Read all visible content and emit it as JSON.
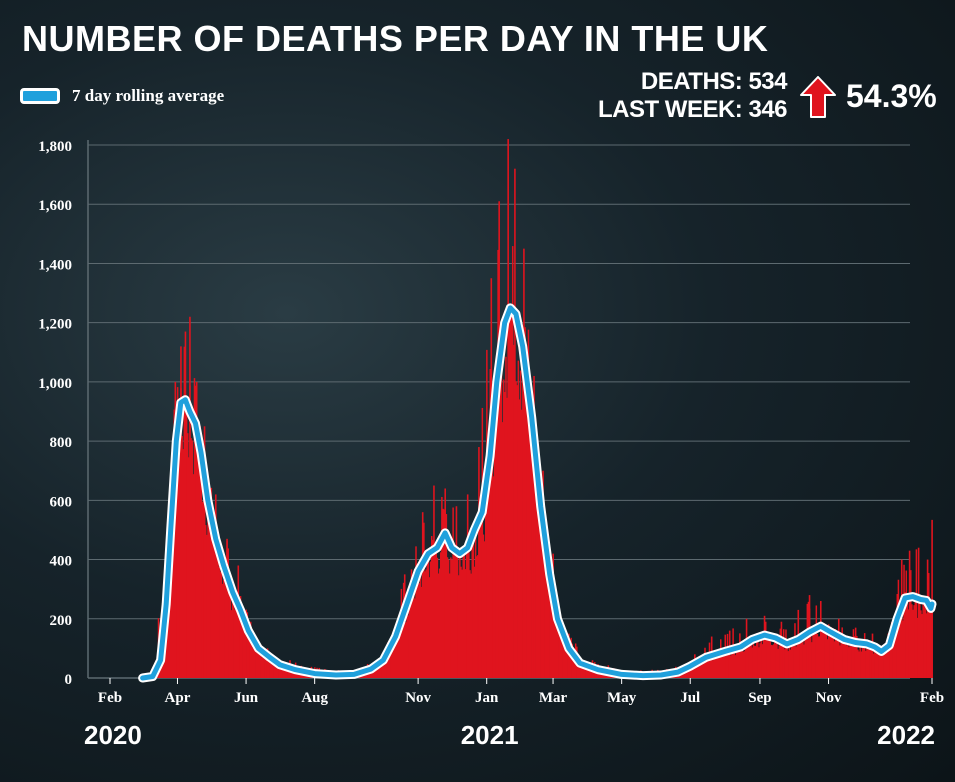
{
  "title": "NUMBER OF DEATHS PER DAY IN THE UK",
  "legend": {
    "label": "7 day rolling average"
  },
  "stats": {
    "deaths": "DEATHS: 534",
    "last_week": "LAST WEEK: 346",
    "change": "54.3%",
    "change_direction": "up",
    "arrow_color": "#e0141e"
  },
  "colors": {
    "bars": "#e0141e",
    "average_line": "#1fa0dc",
    "average_outline": "#ffffff",
    "grid": "#5d6a70"
  },
  "chart_data": {
    "type": "bar",
    "title": "NUMBER OF DEATHS PER DAY IN THE UK",
    "ylim": [
      0,
      1800
    ],
    "yticks": [
      0,
      200,
      400,
      600,
      800,
      1000,
      1200,
      1400,
      1600,
      1800
    ],
    "ytick_labels": [
      "0",
      "200",
      "400",
      "600",
      "800",
      "1,000",
      "1,200",
      "1,400",
      "1,600",
      "1,800"
    ],
    "x_range": [
      "2020-02-01",
      "2022-02-01"
    ],
    "xticks": [
      {
        "date": "2020-02-01",
        "label": "Feb"
      },
      {
        "date": "2020-04-01",
        "label": "Apr"
      },
      {
        "date": "2020-06-01",
        "label": "Jun"
      },
      {
        "date": "2020-08-01",
        "label": "Aug"
      },
      {
        "date": "2020-11-01",
        "label": "Nov"
      },
      {
        "date": "2021-01-01",
        "label": "Jan"
      },
      {
        "date": "2021-03-01",
        "label": "Mar"
      },
      {
        "date": "2021-05-01",
        "label": "May"
      },
      {
        "date": "2021-07-01",
        "label": "Jul"
      },
      {
        "date": "2021-09-01",
        "label": "Sep"
      },
      {
        "date": "2021-11-01",
        "label": "Nov"
      },
      {
        "date": "2022-02-01",
        "label": "Feb"
      }
    ],
    "year_labels": [
      {
        "date": "2020-02-01",
        "label": "2020"
      },
      {
        "date": "2021-01-01",
        "label": "2021"
      },
      {
        "date": "2022-02-01",
        "label": "2022"
      }
    ],
    "grid": true,
    "series": [
      {
        "name": "7 day rolling average",
        "type": "line",
        "points": [
          [
            "2020-03-01",
            0
          ],
          [
            "2020-03-10",
            5
          ],
          [
            "2020-03-17",
            60
          ],
          [
            "2020-03-22",
            250
          ],
          [
            "2020-03-26",
            500
          ],
          [
            "2020-03-31",
            800
          ],
          [
            "2020-04-04",
            930
          ],
          [
            "2020-04-08",
            940
          ],
          [
            "2020-04-12",
            900
          ],
          [
            "2020-04-17",
            860
          ],
          [
            "2020-04-22",
            760
          ],
          [
            "2020-04-28",
            600
          ],
          [
            "2020-05-05",
            470
          ],
          [
            "2020-05-12",
            380
          ],
          [
            "2020-05-20",
            290
          ],
          [
            "2020-05-27",
            230
          ],
          [
            "2020-06-03",
            160
          ],
          [
            "2020-06-12",
            100
          ],
          [
            "2020-06-22",
            70
          ],
          [
            "2020-07-01",
            45
          ],
          [
            "2020-07-15",
            28
          ],
          [
            "2020-08-01",
            15
          ],
          [
            "2020-08-20",
            10
          ],
          [
            "2020-09-05",
            12
          ],
          [
            "2020-09-20",
            30
          ],
          [
            "2020-10-01",
            60
          ],
          [
            "2020-10-12",
            140
          ],
          [
            "2020-10-22",
            250
          ],
          [
            "2020-11-01",
            360
          ],
          [
            "2020-11-10",
            420
          ],
          [
            "2020-11-18",
            440
          ],
          [
            "2020-11-25",
            490
          ],
          [
            "2020-12-01",
            440
          ],
          [
            "2020-12-08",
            420
          ],
          [
            "2020-12-15",
            440
          ],
          [
            "2020-12-21",
            500
          ],
          [
            "2020-12-28",
            560
          ],
          [
            "2021-01-04",
            750
          ],
          [
            "2021-01-10",
            1000
          ],
          [
            "2021-01-17",
            1200
          ],
          [
            "2021-01-22",
            1250
          ],
          [
            "2021-01-27",
            1230
          ],
          [
            "2021-02-02",
            1120
          ],
          [
            "2021-02-10",
            880
          ],
          [
            "2021-02-18",
            580
          ],
          [
            "2021-02-26",
            350
          ],
          [
            "2021-03-05",
            200
          ],
          [
            "2021-03-15",
            100
          ],
          [
            "2021-03-25",
            50
          ],
          [
            "2021-04-10",
            28
          ],
          [
            "2021-05-01",
            12
          ],
          [
            "2021-05-20",
            8
          ],
          [
            "2021-06-05",
            10
          ],
          [
            "2021-06-20",
            20
          ],
          [
            "2021-07-01",
            40
          ],
          [
            "2021-07-15",
            70
          ],
          [
            "2021-08-01",
            90
          ],
          [
            "2021-08-15",
            105
          ],
          [
            "2021-08-25",
            130
          ],
          [
            "2021-09-05",
            145
          ],
          [
            "2021-09-15",
            135
          ],
          [
            "2021-09-25",
            115
          ],
          [
            "2021-10-05",
            130
          ],
          [
            "2021-10-15",
            155
          ],
          [
            "2021-10-25",
            175
          ],
          [
            "2021-11-03",
            155
          ],
          [
            "2021-11-15",
            130
          ],
          [
            "2021-11-25",
            120
          ],
          [
            "2021-12-05",
            115
          ],
          [
            "2021-12-12",
            105
          ],
          [
            "2021-12-18",
            90
          ],
          [
            "2021-12-25",
            110
          ],
          [
            "2022-01-01",
            200
          ],
          [
            "2022-01-08",
            270
          ],
          [
            "2022-01-15",
            275
          ],
          [
            "2022-01-22",
            265
          ],
          [
            "2022-01-27",
            262
          ],
          [
            "2022-01-31",
            235
          ],
          [
            "2022-02-01",
            250
          ]
        ]
      },
      {
        "name": "Daily deaths",
        "type": "bar",
        "points": [
          [
            "2020-03-20",
            220
          ],
          [
            "2020-03-25",
            560
          ],
          [
            "2020-03-30",
            1000
          ],
          [
            "2020-04-04",
            1120
          ],
          [
            "2020-04-08",
            1170
          ],
          [
            "2020-04-12",
            1220
          ],
          [
            "2020-04-18",
            1000
          ],
          [
            "2020-04-25",
            850
          ],
          [
            "2020-05-05",
            620
          ],
          [
            "2020-05-15",
            470
          ],
          [
            "2020-05-25",
            380
          ],
          [
            "2020-06-05",
            190
          ],
          [
            "2020-06-20",
            100
          ],
          [
            "2020-07-10",
            60
          ],
          [
            "2020-08-10",
            30
          ],
          [
            "2020-09-10",
            25
          ],
          [
            "2020-10-05",
            120
          ],
          [
            "2020-10-20",
            350
          ],
          [
            "2020-11-05",
            560
          ],
          [
            "2020-11-15",
            650
          ],
          [
            "2020-11-25",
            640
          ],
          [
            "2020-12-05",
            580
          ],
          [
            "2020-12-15",
            620
          ],
          [
            "2020-12-25",
            780
          ],
          [
            "2021-01-05",
            1350
          ],
          [
            "2021-01-12",
            1610
          ],
          [
            "2021-01-20",
            1820
          ],
          [
            "2021-01-26",
            1720
          ],
          [
            "2021-02-03",
            1450
          ],
          [
            "2021-02-12",
            1020
          ],
          [
            "2021-02-20",
            700
          ],
          [
            "2021-03-01",
            420
          ],
          [
            "2021-03-15",
            150
          ],
          [
            "2021-04-05",
            60
          ],
          [
            "2021-05-10",
            25
          ],
          [
            "2021-06-10",
            30
          ],
          [
            "2021-07-05",
            80
          ],
          [
            "2021-07-20",
            140
          ],
          [
            "2021-08-05",
            160
          ],
          [
            "2021-08-20",
            200
          ],
          [
            "2021-09-05",
            210
          ],
          [
            "2021-09-20",
            190
          ],
          [
            "2021-10-05",
            230
          ],
          [
            "2021-10-15",
            280
          ],
          [
            "2021-10-25",
            260
          ],
          [
            "2021-11-10",
            200
          ],
          [
            "2021-11-25",
            170
          ],
          [
            "2021-12-10",
            150
          ],
          [
            "2021-12-24",
            150
          ],
          [
            "2022-01-05",
            400
          ],
          [
            "2022-01-12",
            430
          ],
          [
            "2022-01-20",
            440
          ],
          [
            "2022-01-28",
            400
          ],
          [
            "2022-02-01",
            534
          ]
        ]
      }
    ]
  }
}
